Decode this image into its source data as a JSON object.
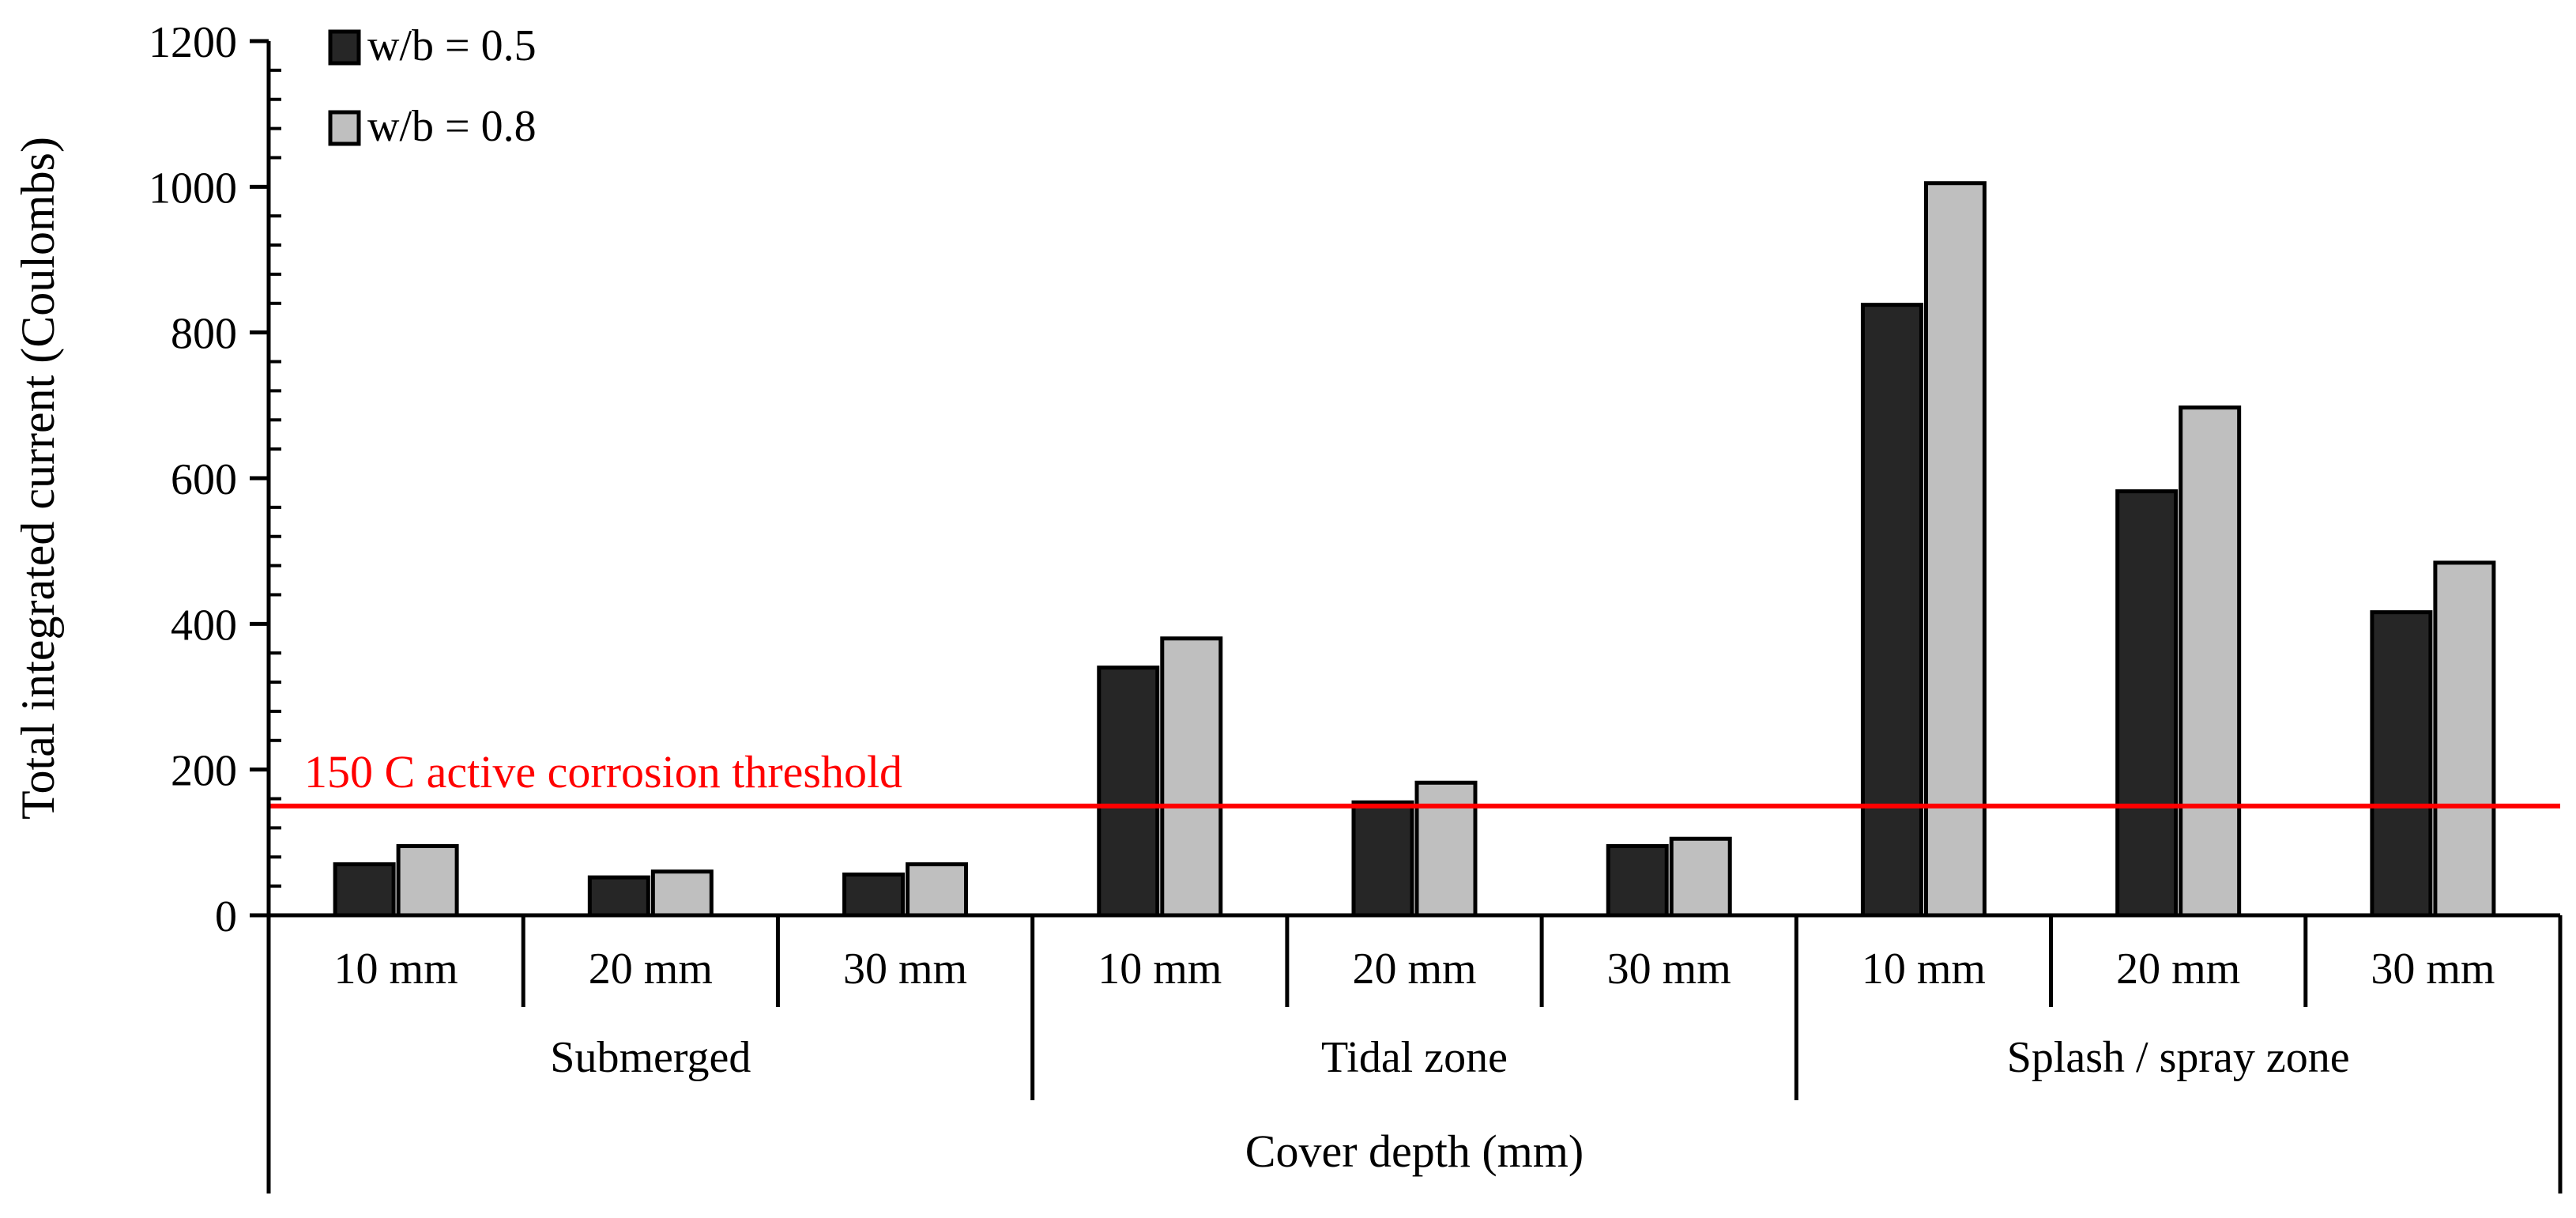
{
  "chart_data": {
    "type": "bar",
    "ylabel": "Total integrated current (Coulombs)",
    "xlabel": "Cover depth (mm)",
    "ylim": [
      0,
      1200
    ],
    "yticks": [
      0,
      200,
      400,
      600,
      800,
      1000,
      1200
    ],
    "grid": false,
    "legend_position": "top-left",
    "groups": [
      {
        "label": "Submerged",
        "categories": [
          "10 mm",
          "20 mm",
          "30 mm"
        ]
      },
      {
        "label": "Tidal zone",
        "categories": [
          "10 mm",
          "20 mm",
          "30 mm"
        ]
      },
      {
        "label": "Splash / spray zone",
        "categories": [
          "10 mm",
          "20 mm",
          "30 mm"
        ]
      }
    ],
    "series": [
      {
        "name": "w/b = 0.5",
        "color": "#262626",
        "values": [
          70,
          52,
          56,
          340,
          155,
          95,
          838,
          582,
          416
        ]
      },
      {
        "name": "w/b = 0.8",
        "color": "#bfbfbf",
        "values": [
          95,
          60,
          70,
          380,
          182,
          105,
          1005,
          697,
          484
        ]
      }
    ],
    "threshold": {
      "value": 150,
      "label": "150 C active corrosion threshold",
      "color": "#ff0000"
    }
  }
}
